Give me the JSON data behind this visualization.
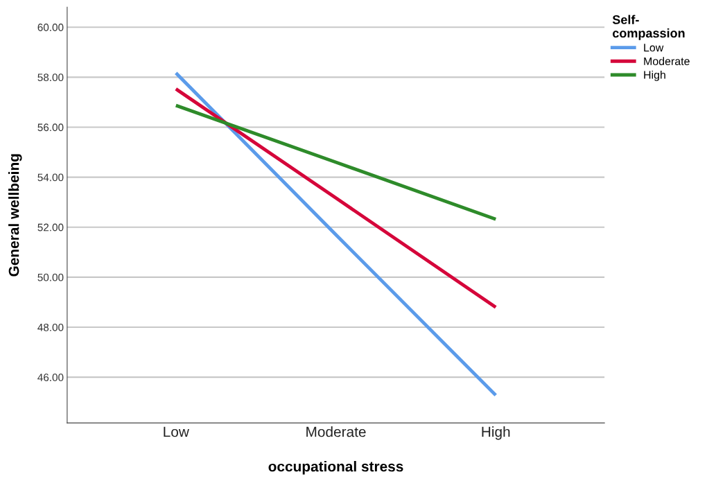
{
  "chart_data": {
    "type": "line",
    "xlabel": "occupational stress",
    "ylabel": "General wellbeing",
    "legend_title": "Self-compassion",
    "categories": [
      "Low",
      "Moderate",
      "High"
    ],
    "series": [
      {
        "name": "Low",
        "color": "#5b9bea",
        "values": [
          58.17,
          51.7,
          45.28
        ]
      },
      {
        "name": "Moderate",
        "color": "#d5063a",
        "values": [
          57.53,
          53.17,
          48.8
        ]
      },
      {
        "name": "High",
        "color": "#2e8b2a",
        "values": [
          56.87,
          54.6,
          52.32
        ]
      }
    ],
    "ylim": [
      44.17,
      60.8
    ],
    "yticks": [
      {
        "value": 46,
        "label": "46.00"
      },
      {
        "value": 48,
        "label": "48.00"
      },
      {
        "value": 50,
        "label": "50.00"
      },
      {
        "value": 52,
        "label": "52.00"
      },
      {
        "value": 54,
        "label": "54.00"
      },
      {
        "value": 56,
        "label": "56.00"
      },
      {
        "value": 58,
        "label": "58.00"
      },
      {
        "value": 60,
        "label": "60.00"
      }
    ],
    "grid": "y",
    "legend": "top right",
    "marker": "none",
    "line_style": "solid"
  }
}
